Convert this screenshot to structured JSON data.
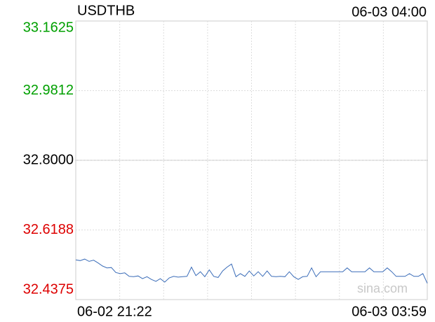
{
  "chart_data": {
    "type": "line",
    "title": "USDTHB",
    "time": "06-03 04:00",
    "xlabels": [
      "06-02 21:22",
      "06-03 03:59"
    ],
    "watermark": "sina.com",
    "ylim": [
      32.4375,
      33.1625
    ],
    "yticks": [
      33.1625,
      32.9812,
      {
        "value": 32.8,
        "label": "32.8000"
      },
      32.6188,
      32.4375
    ],
    "ytick_colors": [
      "#00a000",
      "#00a000",
      "#000000",
      "#dd0000",
      "#dd0000"
    ],
    "grid": true,
    "series": [
      {
        "name": "USDTHB",
        "color": "#3a6cb8",
        "values": [
          32.541,
          32.539,
          32.543,
          32.537,
          32.54,
          32.533,
          32.525,
          32.52,
          32.521,
          32.508,
          32.505,
          32.507,
          32.498,
          32.497,
          32.499,
          32.492,
          32.497,
          32.49,
          32.485,
          32.492,
          32.483,
          32.494,
          32.498,
          32.496,
          32.497,
          32.498,
          32.522,
          32.5,
          32.51,
          32.497,
          32.515,
          32.498,
          32.495,
          32.512,
          32.522,
          32.53,
          32.497,
          32.505,
          32.498,
          32.512,
          32.499,
          32.51,
          32.498,
          32.512,
          32.498,
          32.497,
          32.498,
          32.497,
          32.51,
          32.497,
          32.49,
          32.497,
          32.498,
          32.52,
          32.497,
          32.51,
          32.51,
          32.51,
          32.51,
          32.51,
          32.51,
          32.52,
          32.51,
          32.51,
          32.51,
          32.51,
          32.52,
          32.51,
          32.51,
          32.51,
          32.52,
          32.51,
          32.498,
          32.498,
          32.498,
          32.505,
          32.498,
          32.498,
          32.505,
          32.48
        ]
      }
    ]
  }
}
